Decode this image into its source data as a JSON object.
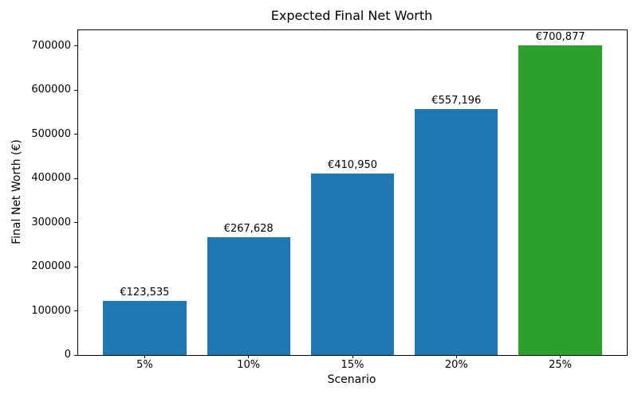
{
  "chart_data": {
    "type": "bar",
    "title": "Expected Final Net Worth",
    "xlabel": "Scenario",
    "ylabel": "Final Net Worth (€)",
    "categories": [
      "5%",
      "10%",
      "15%",
      "20%",
      "25%"
    ],
    "values": [
      123535,
      267628,
      410950,
      557196,
      700877
    ],
    "bar_labels": [
      "€123,535",
      "€267,628",
      "€410,950",
      "€557,196",
      "€700,877"
    ],
    "bar_colors": [
      "#1f77b4",
      "#1f77b4",
      "#1f77b4",
      "#1f77b4",
      "#2ca02c"
    ],
    "ylim": [
      0,
      735921
    ],
    "yticks": [
      0,
      100000,
      200000,
      300000,
      400000,
      500000,
      600000,
      700000
    ],
    "ytick_labels": [
      "0",
      "100000",
      "200000",
      "300000",
      "400000",
      "500000",
      "600000",
      "700000"
    ],
    "grid": false,
    "legend": null
  }
}
